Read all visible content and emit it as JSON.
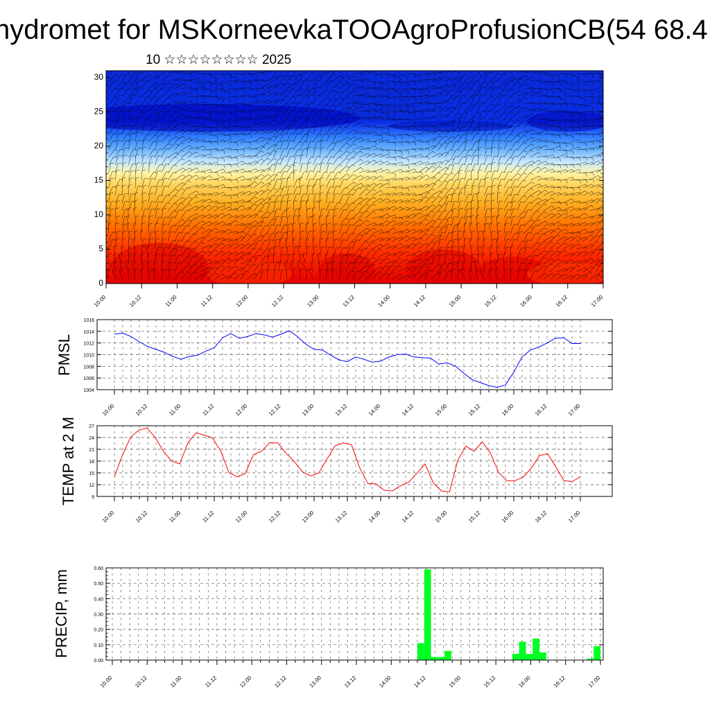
{
  "header": {
    "title": "hydromet for MSKorneevkaTOOAgroProfusionCB(54 68.4",
    "subtitle": "10 ☆☆☆☆☆☆☆☆ 2025"
  },
  "x_tick_labels": [
    "10.00",
    "10.12",
    "11.00",
    "11.12",
    "12.00",
    "12.12",
    "13.00",
    "13.12",
    "14.00",
    "14.12",
    "15.00",
    "15.12",
    "16.00",
    "16.12",
    "17.00"
  ],
  "chart_data": [
    {
      "type": "heatmap",
      "title": "",
      "xlabel": "",
      "ylabel": "",
      "ylim": [
        0,
        31
      ],
      "y_ticks": [
        0,
        5,
        10,
        15,
        20,
        25,
        30
      ],
      "colors": [
        "#e60000",
        "#ff4a00",
        "#ff8c00",
        "#ffc040",
        "#fff2a0",
        "#a8d8ff",
        "#3c8cff",
        "#0f3cf0",
        "#0000c8"
      ],
      "note_bands": [
        {
          "from": 0,
          "to": 8,
          "color": "#e60000"
        },
        {
          "from": 8,
          "to": 15,
          "color": "#ff9a20"
        },
        {
          "from": 15,
          "to": 19,
          "color": "#a8d8ff"
        },
        {
          "from": 19,
          "to": 31,
          "color": "#0f3cf0"
        }
      ]
    },
    {
      "type": "line",
      "ylabel": "PMSL",
      "ylim": [
        1004,
        1016
      ],
      "y_ticks": [
        1004,
        1006,
        1008,
        1010,
        1012,
        1014,
        1016
      ],
      "color": "#0000ff",
      "series": [
        {
          "values": [
            1013.5,
            1013.7,
            1013.1,
            1012.2,
            1011.4,
            1010.9,
            1010.4,
            1009.7,
            1009.2,
            1009.7,
            1009.9,
            1010.6,
            1011.2,
            1012.9,
            1013.6,
            1012.8,
            1013.1,
            1013.6,
            1013.4,
            1013.0,
            1013.5,
            1014.1,
            1013.1,
            1011.8,
            1010.9,
            1010.8,
            1009.9,
            1009.1,
            1008.8,
            1009.6,
            1009.2,
            1008.7,
            1008.9,
            1009.6,
            1010.0,
            1010.1,
            1009.6,
            1009.5,
            1009.4,
            1008.4,
            1008.6,
            1008.0,
            1006.8,
            1005.7,
            1005.2,
            1004.7,
            1004.4,
            1004.8,
            1007.0,
            1009.6,
            1010.8,
            1011.3,
            1012.0,
            1012.8,
            1012.9,
            1011.9,
            1011.9
          ]
        }
      ]
    },
    {
      "type": "line",
      "ylabel": "TEMP at 2 M",
      "ylim": [
        9,
        27
      ],
      "y_ticks": [
        9,
        12,
        15,
        18,
        21,
        24,
        27
      ],
      "color": "#ff0000",
      "series": [
        {
          "values": [
            14.0,
            19.7,
            24.1,
            25.9,
            26.4,
            24.0,
            20.5,
            18.0,
            17.3,
            22.7,
            25.2,
            24.6,
            23.9,
            20.6,
            15.1,
            14.0,
            14.8,
            19.6,
            20.5,
            22.7,
            22.6,
            20.0,
            17.9,
            15.3,
            14.2,
            15.0,
            18.5,
            21.9,
            22.6,
            22.2,
            16.3,
            12.3,
            12.2,
            10.6,
            10.4,
            11.7,
            12.6,
            14.9,
            17.3,
            12.5,
            10.4,
            10.2,
            18.2,
            21.8,
            20.5,
            22.9,
            20.1,
            15.1,
            13.0,
            13.0,
            13.9,
            16.2,
            19.4,
            19.9,
            16.5,
            13.0,
            12.8,
            14.0
          ]
        }
      ]
    },
    {
      "type": "bar",
      "ylabel": "PRECIP, mm",
      "ylim": [
        0,
        0.6
      ],
      "y_ticks": [
        0,
        0.1,
        0.2,
        0.3,
        0.4,
        0.5,
        0.6
      ],
      "y_tick_labels": [
        "0.00",
        "0.10",
        "0.20",
        "0.30",
        "0.40",
        "0.50",
        "0.60"
      ],
      "color": "#00ff22",
      "bars": [
        {
          "x": 46,
          "value": 0.11
        },
        {
          "x": 47,
          "value": 0.59
        },
        {
          "x": 48,
          "value": 0.02
        },
        {
          "x": 49,
          "value": 0.02
        },
        {
          "x": 50,
          "value": 0.06
        },
        {
          "x": 60,
          "value": 0.04
        },
        {
          "x": 61,
          "value": 0.12
        },
        {
          "x": 62,
          "value": 0.04
        },
        {
          "x": 63,
          "value": 0.14
        },
        {
          "x": 64,
          "value": 0.05
        },
        {
          "x": 71,
          "value": 0.01
        },
        {
          "x": 72,
          "value": 0.09
        }
      ]
    }
  ]
}
